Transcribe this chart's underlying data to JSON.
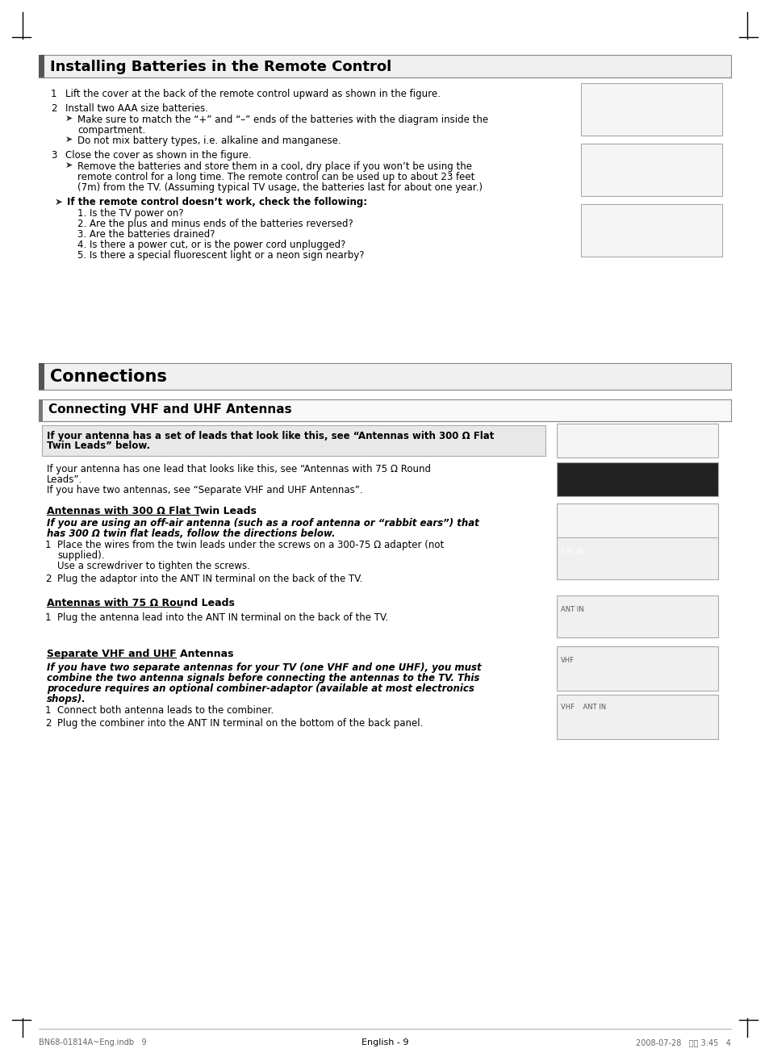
{
  "page_bg": "#ffffff",
  "border_color": "#000000",
  "section1_title": "Installing Batteries in the Remote Control",
  "section2_title": "Connections",
  "section3_title": "Connecting VHF and UHF Antennas",
  "footer_left": "BN68-01814A~Eng.indb   9",
  "footer_right": "2008-07-28   오후 3:45   4",
  "footer_center": "English - 9",
  "section1_content": [
    {
      "type": "numbered",
      "num": "1",
      "text": "Lift the cover at the back of the remote control upward as shown in the figure."
    },
    {
      "type": "numbered",
      "num": "2",
      "text": "Install two AAA size batteries."
    },
    {
      "type": "bullet",
      "text": "Make sure to match the “+” and “–” ends of the batteries with the diagram inside the\ncompartment."
    },
    {
      "type": "bullet",
      "text": "Do not mix battery types, i.e. alkaline and manganese."
    },
    {
      "type": "numbered",
      "num": "3",
      "text": "Close the cover as shown in the figure."
    },
    {
      "type": "bullet",
      "text": "Remove the batteries and store them in a cool, dry place if you won’t be using the\nremote control for a long time. The remote control can be used up to about 23 feet\n(7m) from the TV. (Assuming typical TV usage, the batteries last for about one year.)"
    },
    {
      "type": "bold_bullet",
      "text": "If the remote control doesn’t work, check the following:"
    },
    {
      "type": "sub",
      "text": "1. Is the TV power on?"
    },
    {
      "type": "sub",
      "text": "2. Are the plus and minus ends of the batteries reversed?"
    },
    {
      "type": "sub",
      "text": "3. Are the batteries drained?"
    },
    {
      "type": "sub",
      "text": "4. Is there a power cut, or is the power cord unplugged?"
    },
    {
      "type": "sub",
      "text": "5. Is there a special fluorescent light or a neon sign nearby?"
    }
  ],
  "section3_blocks": [
    {
      "type": "highlighted_note",
      "text": "If your antenna has a set of leads that look like this, see “Antennas with 300 Ω Flat\nTwin Leads” below."
    },
    {
      "type": "normal_note",
      "text": "If your antenna has one lead that looks like this, see “Antennas with 75 Ω Round\nLeads”.\nIf you have two antennas, see “Separate VHF and UHF Antennas”."
    },
    {
      "type": "subsection",
      "title": "Antennas with 300 Ω Flat Twin Leads",
      "bold_text": "If you are using an off-air antenna (such as a roof antenna or “rabbit ears”) that\nhas 300 Ω twin flat leads, follow the directions below.",
      "items": [
        {
          "num": "1",
          "text": "Place the wires from the twin leads under the screws on a 300-75 Ω adapter (not\nsupplied).\nUse a screwdriver to tighten the screws."
        },
        {
          "num": "2",
          "text": "Plug the adaptor into the ANT IN terminal on the back of the TV."
        }
      ]
    },
    {
      "type": "subsection",
      "title": "Antennas with 75 Ω Round Leads",
      "bold_text": "",
      "items": [
        {
          "num": "1",
          "text": "Plug the antenna lead into the ANT IN terminal on the back of the TV."
        }
      ]
    },
    {
      "type": "subsection",
      "title": "Separate VHF and UHF Antennas",
      "bold_text": "If you have two separate antennas for your TV (one VHF and one UHF), you must\ncombine the two antenna signals before connecting the antennas to the TV. This\nprocedure requires an optional combiner-adaptor (available at most electronics\nshops).",
      "items": [
        {
          "num": "1",
          "text": "Connect both antenna leads to the combiner."
        },
        {
          "num": "2",
          "text": "Plug the combiner into the ANT IN terminal on the bottom of the back panel."
        }
      ]
    }
  ]
}
